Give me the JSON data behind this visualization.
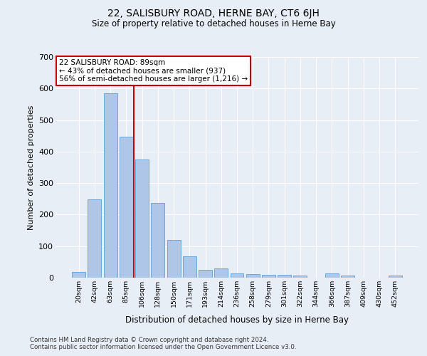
{
  "title": "22, SALISBURY ROAD, HERNE BAY, CT6 6JH",
  "subtitle": "Size of property relative to detached houses in Herne Bay",
  "xlabel": "Distribution of detached houses by size in Herne Bay",
  "ylabel": "Number of detached properties",
  "categories": [
    "20sqm",
    "42sqm",
    "63sqm",
    "85sqm",
    "106sqm",
    "128sqm",
    "150sqm",
    "171sqm",
    "193sqm",
    "214sqm",
    "236sqm",
    "258sqm",
    "279sqm",
    "301sqm",
    "322sqm",
    "344sqm",
    "366sqm",
    "387sqm",
    "409sqm",
    "430sqm",
    "452sqm"
  ],
  "values": [
    18,
    248,
    585,
    448,
    375,
    237,
    120,
    68,
    24,
    30,
    14,
    12,
    10,
    10,
    7,
    0,
    13,
    7,
    0,
    0,
    7
  ],
  "bar_color": "#aec6e8",
  "bar_edge_color": "#5a9fd4",
  "vline_x": 3.5,
  "vline_color": "#cc0000",
  "annotation_line1": "22 SALISBURY ROAD: 89sqm",
  "annotation_line2": "← 43% of detached houses are smaller (937)",
  "annotation_line3": "56% of semi-detached houses are larger (1,216) →",
  "annotation_box_color": "#ffffff",
  "annotation_box_edge": "#cc0000",
  "bg_color": "#e8eef6",
  "plot_bg_color": "#e8eef6",
  "footer": "Contains HM Land Registry data © Crown copyright and database right 2024.\nContains public sector information licensed under the Open Government Licence v3.0.",
  "ylim": [
    0,
    700
  ],
  "yticks": [
    0,
    100,
    200,
    300,
    400,
    500,
    600,
    700
  ]
}
